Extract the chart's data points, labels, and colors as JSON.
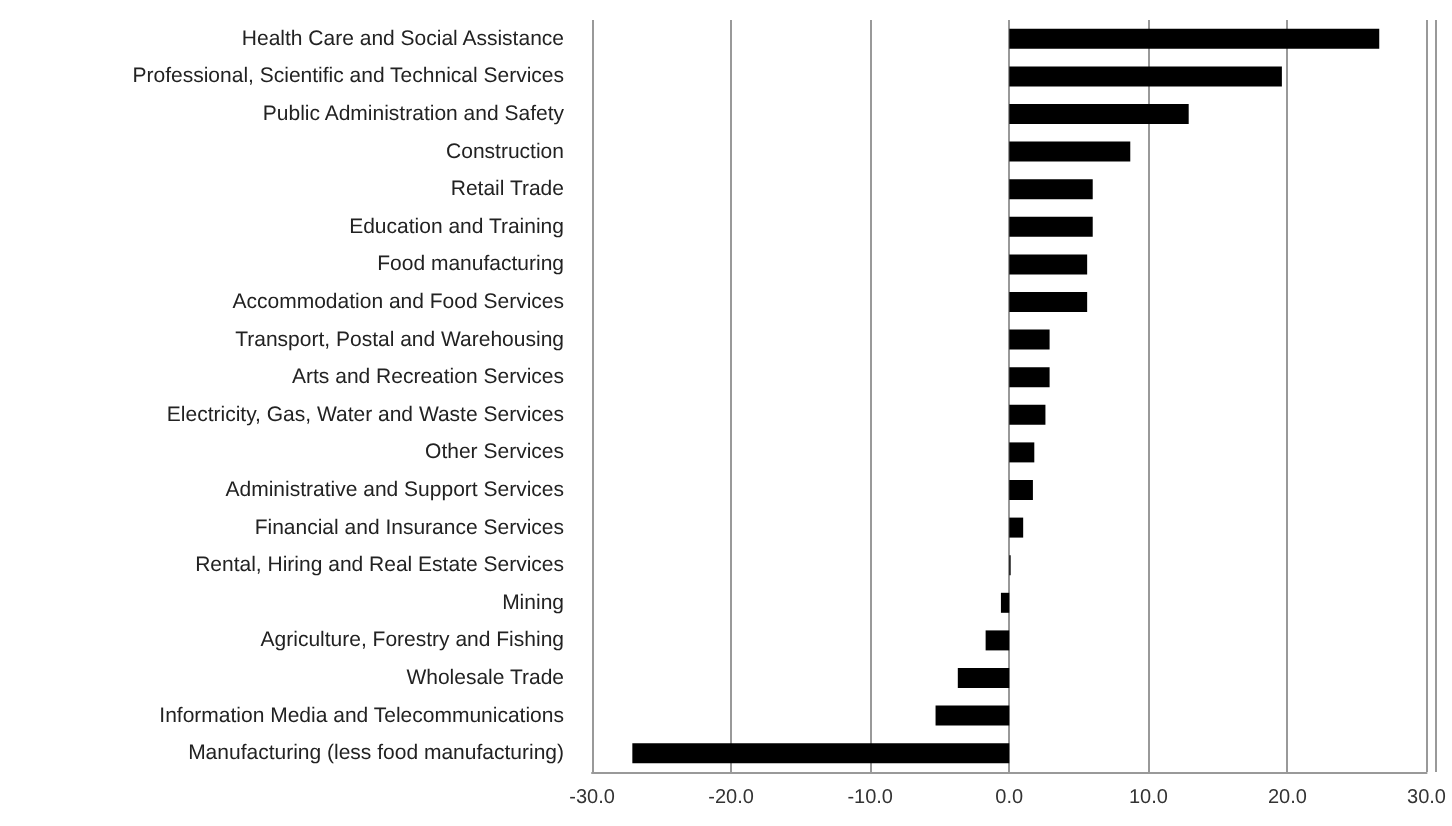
{
  "chart_data": {
    "type": "bar",
    "orientation": "horizontal",
    "categories": [
      "Health Care and Social Assistance",
      "Professional, Scientific and Technical Services",
      "Public Administration and Safety",
      "Construction",
      "Retail Trade",
      "Education and Training",
      "Food manufacturing",
      "Accommodation and Food Services",
      "Transport, Postal and Warehousing",
      "Arts and Recreation Services",
      "Electricity, Gas, Water and Waste Services",
      "Other Services",
      "Administrative and Support Services",
      "Financial and Insurance Services",
      "Rental, Hiring and Real Estate Services",
      "Mining",
      "Agriculture, Forestry and Fishing",
      "Wholesale Trade",
      "Information Media and Telecommunications",
      "Manufacturing (less food manufacturing)"
    ],
    "values": [
      26.6,
      19.6,
      12.9,
      8.7,
      6.0,
      6.0,
      5.6,
      5.6,
      2.9,
      2.9,
      2.6,
      1.8,
      1.7,
      1.0,
      0.1,
      -0.6,
      -1.7,
      -3.7,
      -5.3,
      -27.1
    ],
    "color": "#000000",
    "xlim": [
      -30,
      30
    ],
    "xticks": [
      {
        "value": -30,
        "label": "-30.0"
      },
      {
        "value": -20,
        "label": "-20.0"
      },
      {
        "value": -10,
        "label": "-10.0"
      },
      {
        "value": 0,
        "label": "0.0"
      },
      {
        "value": 10,
        "label": "10.0"
      },
      {
        "value": 20,
        "label": "20.0"
      },
      {
        "value": 30,
        "label": "30.0"
      }
    ],
    "grid": "x"
  }
}
